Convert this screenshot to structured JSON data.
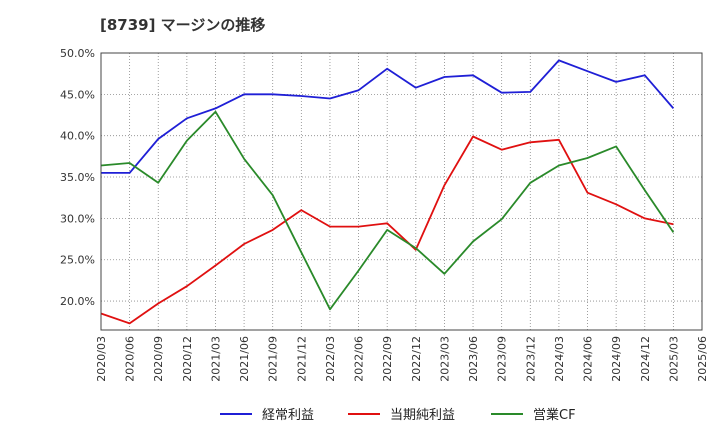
{
  "chart_data": {
    "type": "line",
    "title": "[8739]  マージンの推移",
    "x": [
      "2020/03",
      "2020/06",
      "2020/09",
      "2020/12",
      "2021/03",
      "2021/06",
      "2021/09",
      "2021/12",
      "2022/03",
      "2022/06",
      "2022/09",
      "2022/12",
      "2023/03",
      "2023/06",
      "2023/09",
      "2023/12",
      "2024/03",
      "2024/06",
      "2024/09",
      "2024/12",
      "2025/03",
      "2025/06"
    ],
    "ylim": [
      16.5,
      50
    ],
    "yticks": [
      "20.0%",
      "25.0%",
      "30.0%",
      "35.0%",
      "40.0%",
      "45.0%",
      "50.0%"
    ],
    "ytick_values": [
      20,
      25,
      30,
      35,
      40,
      45,
      50
    ],
    "grid": true,
    "legend_position": "bottom",
    "series": [
      {
        "name": "経常利益",
        "color": "#1f1fd6",
        "values": [
          35.5,
          35.5,
          39.6,
          42.1,
          43.3,
          45.0,
          45.0,
          44.8,
          44.5,
          45.5,
          48.1,
          45.8,
          47.1,
          47.3,
          45.2,
          45.3,
          49.1,
          47.8,
          46.5,
          47.3,
          43.3,
          null
        ]
      },
      {
        "name": "当期純利益",
        "color": "#e01010",
        "values": [
          18.5,
          17.3,
          19.7,
          21.8,
          24.3,
          26.9,
          28.6,
          31.0,
          29.0,
          29.0,
          29.4,
          26.2,
          34.0,
          39.9,
          38.3,
          39.2,
          39.5,
          33.1,
          31.7,
          30.0,
          29.3,
          null
        ]
      },
      {
        "name": "営業CF",
        "color": "#2a8a2a",
        "values": [
          36.4,
          36.7,
          34.3,
          39.4,
          42.9,
          37.2,
          32.8,
          25.9,
          19.0,
          23.7,
          28.6,
          26.4,
          23.3,
          27.2,
          29.9,
          34.3,
          36.4,
          37.3,
          38.7,
          33.4,
          28.3,
          null
        ]
      }
    ]
  }
}
